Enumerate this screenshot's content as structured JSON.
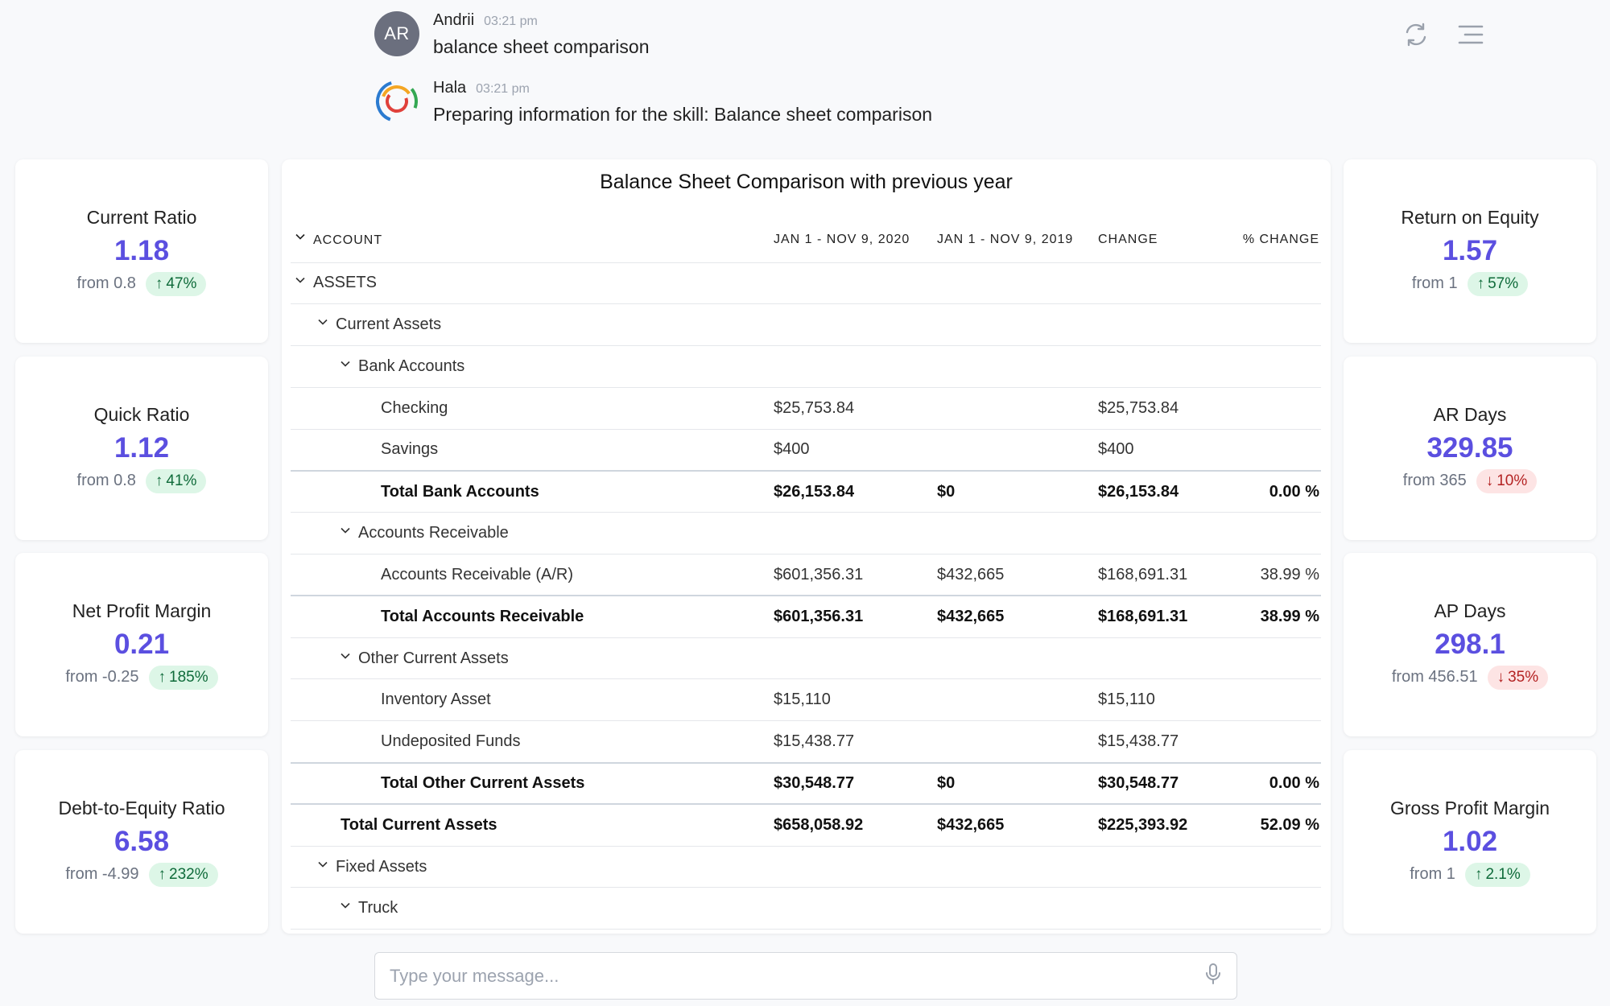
{
  "chat": {
    "messages": [
      {
        "avatar": "AR",
        "name": "Andrii",
        "time": "03:21 pm",
        "text": "balance sheet comparison"
      },
      {
        "avatar": "hala-logo",
        "name": "Hala",
        "time": "03:21 pm",
        "text": "Preparing information for the skill: Balance sheet comparison"
      }
    ],
    "top_icons": [
      "refresh-icon",
      "menu-icon"
    ]
  },
  "kpis_left": [
    {
      "label": "Current Ratio",
      "value": "1.18",
      "from": "from 0.8",
      "change": "47%",
      "direction": "up"
    },
    {
      "label": "Quick Ratio",
      "value": "1.12",
      "from": "from 0.8",
      "change": "41%",
      "direction": "up"
    },
    {
      "label": "Net Profit Margin",
      "value": "0.21",
      "from": "from -0.25",
      "change": "185%",
      "direction": "up"
    },
    {
      "label": "Debt-to-Equity Ratio",
      "value": "6.58",
      "from": "from -4.99",
      "change": "232%",
      "direction": "up"
    }
  ],
  "kpis_right": [
    {
      "label": "Return on Equity",
      "value": "1.57",
      "from": "from 1",
      "change": "57%",
      "direction": "up"
    },
    {
      "label": "AR Days",
      "value": "329.85",
      "from": "from 365",
      "change": "10%",
      "direction": "down"
    },
    {
      "label": "AP Days",
      "value": "298.1",
      "from": "from 456.51",
      "change": "35%",
      "direction": "down"
    },
    {
      "label": "Gross Profit Margin",
      "value": "1.02",
      "from": "from 1",
      "change": "2.1%",
      "direction": "up"
    }
  ],
  "table": {
    "title": "Balance Sheet Comparison with previous year",
    "headers": {
      "account": "ACCOUNT",
      "period_a": "JAN 1 - NOV 9, 2020",
      "period_b": "JAN 1 - NOV 9, 2019",
      "change": "CHANGE",
      "pct_change": "% CHANGE"
    },
    "rows": [
      {
        "level": 0,
        "type": "group",
        "account": "ASSETS",
        "a": "",
        "b": "",
        "change": "",
        "pct": ""
      },
      {
        "level": 1,
        "type": "group",
        "account": "Current Assets",
        "a": "",
        "b": "",
        "change": "",
        "pct": ""
      },
      {
        "level": 2,
        "type": "group",
        "account": "Bank Accounts",
        "a": "",
        "b": "",
        "change": "",
        "pct": ""
      },
      {
        "level": 3,
        "type": "item",
        "account": "Checking",
        "a": "$25,753.84",
        "b": "",
        "change": "$25,753.84",
        "pct": ""
      },
      {
        "level": 3,
        "type": "item",
        "account": "Savings",
        "a": "$400",
        "b": "",
        "change": "$400",
        "pct": ""
      },
      {
        "level": 3,
        "type": "total",
        "account": "Total Bank Accounts",
        "a": "$26,153.84",
        "b": "$0",
        "change": "$26,153.84",
        "pct": "0.00 %"
      },
      {
        "level": 2,
        "type": "group",
        "account": "Accounts Receivable",
        "a": "",
        "b": "",
        "change": "",
        "pct": ""
      },
      {
        "level": 3,
        "type": "item",
        "account": "Accounts Receivable (A/R)",
        "a": "$601,356.31",
        "b": "$432,665",
        "change": "$168,691.31",
        "pct": "38.99 %"
      },
      {
        "level": 3,
        "type": "total",
        "account": "Total Accounts Receivable",
        "a": "$601,356.31",
        "b": "$432,665",
        "change": "$168,691.31",
        "pct": "38.99 %"
      },
      {
        "level": 2,
        "type": "group",
        "account": "Other Current Assets",
        "a": "",
        "b": "",
        "change": "",
        "pct": ""
      },
      {
        "level": 3,
        "type": "item",
        "account": "Inventory Asset",
        "a": "$15,110",
        "b": "",
        "change": "$15,110",
        "pct": ""
      },
      {
        "level": 3,
        "type": "item",
        "account": "Undeposited Funds",
        "a": "$15,438.77",
        "b": "",
        "change": "$15,438.77",
        "pct": ""
      },
      {
        "level": 3,
        "type": "total",
        "account": "Total Other Current Assets",
        "a": "$30,548.77",
        "b": "$0",
        "change": "$30,548.77",
        "pct": "0.00 %"
      },
      {
        "level": 2,
        "type": "total",
        "account": "Total Current Assets",
        "a": "$658,058.92",
        "b": "$432,665",
        "change": "$225,393.92",
        "pct": "52.09 %"
      },
      {
        "level": 1,
        "type": "group",
        "account": "Fixed Assets",
        "a": "",
        "b": "",
        "change": "",
        "pct": ""
      },
      {
        "level": 2,
        "type": "group",
        "account": "Truck",
        "a": "",
        "b": "",
        "change": "",
        "pct": ""
      }
    ]
  },
  "input": {
    "placeholder": "Type your message..."
  },
  "colors": {
    "accent": "#5b4fe0",
    "up_bg": "#ddf6e7",
    "down_bg": "#fde4e4"
  }
}
